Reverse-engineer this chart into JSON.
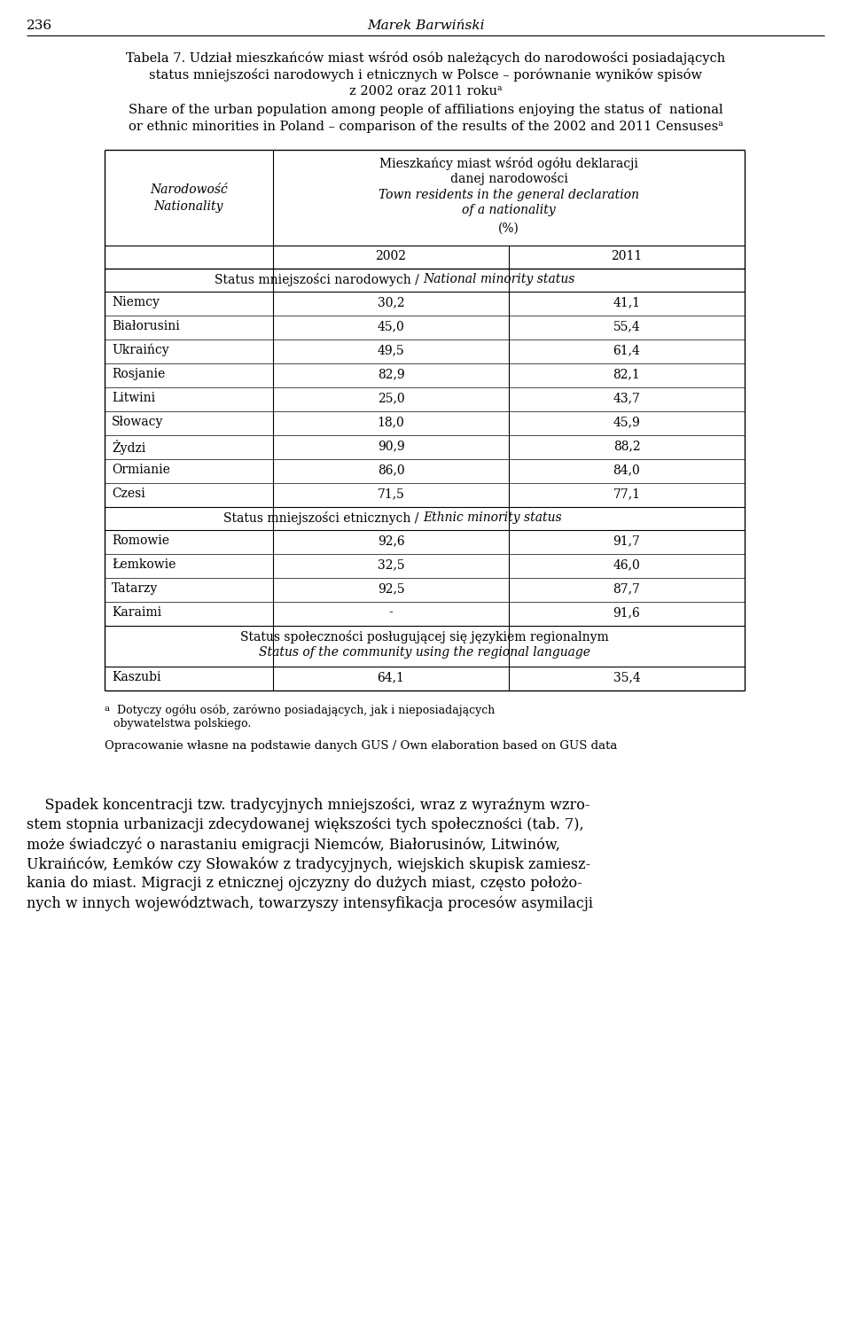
{
  "page_number": "236",
  "page_header": "Marek Barwiński",
  "title_pl_lines": [
    "Tabela 7. Udział mieszkańców miast wśród osób należących do narodowości posiadających",
    "status mniejszości narodowych i etnicznych w Polsce – porównanie wyników spisów",
    "z 2002 oraz 2011 rokuᵃ"
  ],
  "title_en_lines": [
    "Share of the urban population among people of affiliations enjoying the status of  national",
    "or ethnic minorities in Poland – comparison of the results of the 2002 and 2011 Censusesᵃ"
  ],
  "col_header_pl_lines": [
    "Mieszkańcy miast wśród ogółu deklaracji",
    "danej narodowości"
  ],
  "col_header_en_lines": [
    "Town residents in the general declaration",
    "of a nationality"
  ],
  "col_header_pct": "(%)",
  "col_header_left_pl": "Narodowość",
  "col_header_left_en": "Nationality",
  "year1": "2002",
  "year2": "2011",
  "section1_pl": "Status mniejszości narodowych / ",
  "section1_en": "National minority status",
  "national_rows": [
    [
      "Niemcy",
      "30,2",
      "41,1"
    ],
    [
      "Białorusini",
      "45,0",
      "55,4"
    ],
    [
      "Ukraińcy",
      "49,5",
      "61,4"
    ],
    [
      "Rosjanie",
      "82,9",
      "82,1"
    ],
    [
      "Litwini",
      "25,0",
      "43,7"
    ],
    [
      "Słowacy",
      "18,0",
      "45,9"
    ],
    [
      "Żydzi",
      "90,9",
      "88,2"
    ],
    [
      "Ormianie",
      "86,0",
      "84,0"
    ],
    [
      "Czesi",
      "71,5",
      "77,1"
    ]
  ],
  "section2_pl": "Status mniejszości etnicznych / ",
  "section2_en": "Ethnic minority status",
  "ethnic_rows": [
    [
      "Romowie",
      "92,6",
      "91,7"
    ],
    [
      "Łemkowie",
      "32,5",
      "46,0"
    ],
    [
      "Tatarzy",
      "92,5",
      "87,7"
    ],
    [
      "Karaimi",
      "-",
      "91,6"
    ]
  ],
  "section3_pl": "Status społeczności posługującej się językiem regionalnym",
  "section3_en": "Status of the community using the regional language",
  "regional_rows": [
    [
      "Kaszubi",
      "64,1",
      "35,4"
    ]
  ],
  "footnote_superscript": "a",
  "footnote_text_lines": [
    " Dotyczy ogółu osób, zarówno posiadających, jak i nieposiadających",
    "obywatelstwa polskiego."
  ],
  "source": "Opracowanie własne na podstawie danych GUS / Own elaboration based on GUS data",
  "paragraph_lines": [
    "    Spadek koncentracji tzw. tradycyjnych mniejszości, wraz z wyraźnym wzro-",
    "stem stopnia urbanizacji zdecydowanej większości tych społeczności (tab. 7),",
    "może świadczyć o narastaniu emigracji Niemców, Białorusinów, Litwinów,",
    "Ukraińców, Łemków czy Słowaków z tradycyjnych, wiejskich skupisk zamiesz-",
    "kania do miast. Migracji z etnicznej ojczyzny do dużych miast, często położo-",
    "nych w innych województwach, towarzyszy intensyfikacja procesów asymilacji"
  ]
}
